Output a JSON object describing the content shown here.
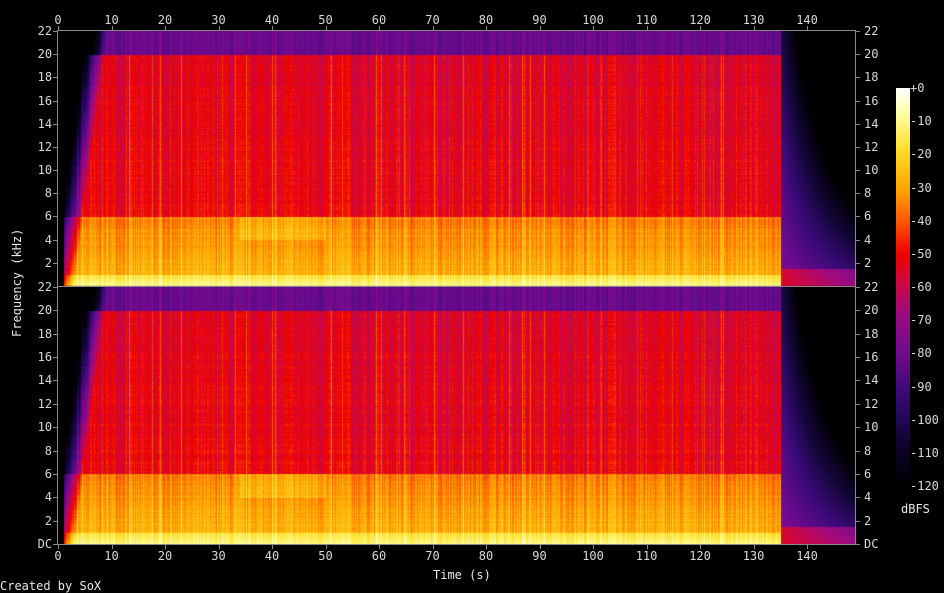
{
  "chart_data": {
    "type": "heatmap",
    "xlabel": "Time (s)",
    "ylabel": "Frequency (kHz)",
    "x_ticks": [
      0,
      10,
      20,
      30,
      40,
      50,
      60,
      70,
      80,
      90,
      100,
      110,
      120,
      130,
      140
    ],
    "xlim": [
      0,
      148
    ],
    "channels": 2,
    "y_ticks_labels": [
      "DC",
      "2",
      "4",
      "6",
      "8",
      "10",
      "12",
      "14",
      "16",
      "18",
      "20",
      "22"
    ],
    "ylim_khz": [
      0,
      22
    ],
    "colorbar": {
      "label": "dBFS",
      "ticks": [
        "+0",
        "-10",
        "-20",
        "-30",
        "-40",
        "-50",
        "-60",
        "-70",
        "-80",
        "-90",
        "-100",
        "-110",
        "-120"
      ],
      "range": [
        -120,
        0
      ],
      "colors": [
        "#000000",
        "#14063a",
        "#3a0a78",
        "#700a90",
        "#a00a80",
        "#d0083c",
        "#f00000",
        "#ff5a00",
        "#ffa800",
        "#ffe030",
        "#ffffa0",
        "#ffffff"
      ]
    },
    "audio_start_s": 1,
    "audio_end_s": 135,
    "band_levels_dbfs": [
      {
        "band_khz": "0-1",
        "level": -10
      },
      {
        "band_khz": "1-6",
        "level": -28
      },
      {
        "band_khz": "6-20",
        "level": -52
      },
      {
        "band_khz": "20-22",
        "level": -82
      }
    ]
  },
  "footer": {
    "credit": "Created by SoX"
  }
}
